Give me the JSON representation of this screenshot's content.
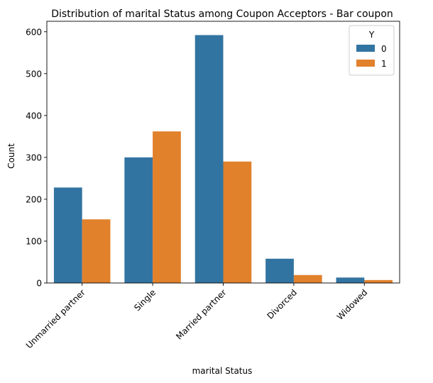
{
  "chart_data": {
    "type": "bar",
    "title": "Distribution of marital Status among Coupon Acceptors - Bar coupon",
    "xlabel": "marital Status",
    "ylabel": "Count",
    "categories": [
      "Unmarried partner",
      "Single",
      "Married partner",
      "Divorced",
      "Widowed"
    ],
    "series": [
      {
        "name": "0",
        "values": [
          228,
          300,
          592,
          58,
          13
        ],
        "color": "#3274a1"
      },
      {
        "name": "1",
        "values": [
          152,
          362,
          290,
          19,
          7
        ],
        "color": "#e1812c"
      }
    ],
    "ylim": [
      0,
      625
    ],
    "yticks": [
      0,
      100,
      200,
      300,
      400,
      500,
      600
    ],
    "legend": {
      "title": "Y",
      "placement": "top-right"
    },
    "grid": false
  }
}
